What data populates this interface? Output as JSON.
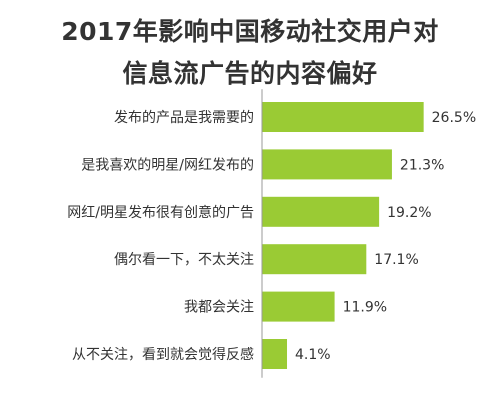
{
  "chart_data": {
    "type": "bar",
    "orientation": "horizontal",
    "title_lines": [
      "2017年影响中国移动社交用户对",
      "信息流广告的内容偏好"
    ],
    "categories": [
      "发布的产品是我需要的",
      "是我喜欢的明星/网红发布的",
      "网红/明星发布很有创意的广告",
      "偶尔看一下，不太关注",
      "我都会关注",
      "从不关注，看到就会觉得反感"
    ],
    "values": [
      26.5,
      21.3,
      19.2,
      17.1,
      11.9,
      4.1
    ],
    "value_labels": [
      "26.5%",
      "21.3%",
      "19.2%",
      "17.1%",
      "11.9%",
      "4.1%"
    ],
    "xlim": [
      0,
      30
    ],
    "bar_color": "#9acb34",
    "axis_color": "#9a9a9a",
    "grid": false,
    "legend": "none"
  }
}
